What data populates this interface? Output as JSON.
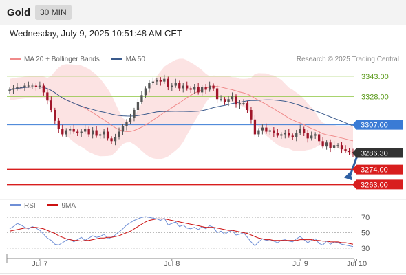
{
  "header": {
    "title": "Gold",
    "timeframe": "30 MIN"
  },
  "timestamp": "Wednesday, July 9, 2025 10:51:48 AM CET",
  "legend_top": [
    {
      "label": "MA 20 + Bollinger Bands",
      "color": "#f08a8a"
    },
    {
      "label": "MA 50",
      "color": "#3a5a8c"
    }
  ],
  "credit": "Research © 2025 Trading Central",
  "legend_bottom": [
    {
      "label": "RSI",
      "color": "#6f8fd6"
    },
    {
      "label": "9MA",
      "color": "#cc1111"
    }
  ],
  "colors": {
    "up": "#555555",
    "down": "#a0162a",
    "arrow": "#2e5fa3"
  },
  "chart_data": [
    {
      "type": "candlestick",
      "title": "",
      "ylim": [
        3252,
        3351
      ],
      "x_ticks": [
        {
          "label": "Jul 7",
          "index": 8
        },
        {
          "label": "Jul 8",
          "index": 43
        },
        {
          "label": "Jul 9",
          "index": 77
        },
        {
          "label": "Jul 10",
          "index": 92
        }
      ],
      "candles_close": [
        3333,
        3334,
        3335,
        3335,
        3336,
        3336,
        3336,
        3335,
        3336,
        3331,
        3325,
        3318,
        3310,
        3304,
        3300,
        3303,
        3304,
        3302,
        3301,
        3302,
        3304,
        3300,
        3303,
        3299,
        3300,
        3302,
        3297,
        3295,
        3298,
        3302,
        3306,
        3309,
        3312,
        3318,
        3324,
        3329,
        3334,
        3338,
        3339,
        3340,
        3339,
        3341,
        3335,
        3336,
        3338,
        3334,
        3336,
        3334,
        3333,
        3335,
        3331,
        3335,
        3333,
        3336,
        3334,
        3326,
        3326,
        3324,
        3326,
        3328,
        3322,
        3323,
        3323,
        3318,
        3311,
        3300,
        3303,
        3305,
        3302,
        3303,
        3301,
        3299,
        3300,
        3301,
        3299,
        3298,
        3301,
        3304,
        3301,
        3297,
        3299,
        3300,
        3295,
        3291,
        3294,
        3290,
        3292,
        3292,
        3289,
        3288,
        3287,
        3286.3
      ],
      "current_price": "3286.30",
      "levels": [
        {
          "value": 3343.0,
          "label": "3343.00",
          "color": "#8cc63f",
          "style": "green"
        },
        {
          "value": 3328.0,
          "label": "3328.00",
          "color": "#8cc63f",
          "style": "green"
        },
        {
          "value": 3307.0,
          "label": "3307.00",
          "color": "#3a7bd5",
          "style": "blue"
        },
        {
          "value": 3274.0,
          "label": "3274.00",
          "color": "#d81e1e",
          "style": "red"
        },
        {
          "value": 3263.0,
          "label": "3263.00",
          "color": "#d81e1e",
          "style": "red"
        }
      ],
      "arrow": {
        "from_value": 3284,
        "to_value": 3266
      }
    },
    {
      "type": "line",
      "title": "",
      "ylim": [
        20,
        80
      ],
      "y_ticks": [
        70,
        50,
        30
      ],
      "series": [
        {
          "name": "RSI",
          "values": [
            55,
            58,
            62,
            60,
            57,
            55,
            58,
            56,
            53,
            48,
            43,
            40,
            35,
            34,
            37,
            40,
            42,
            38,
            41,
            44,
            40,
            43,
            46,
            44,
            45,
            48,
            42,
            44,
            47,
            51,
            55,
            60,
            63,
            66,
            68,
            70,
            71,
            70,
            69,
            68,
            66,
            69,
            60,
            62,
            64,
            58,
            60,
            56,
            55,
            57,
            54,
            58,
            55,
            59,
            57,
            50,
            52,
            48,
            51,
            53,
            47,
            48,
            50,
            44,
            38,
            33,
            38,
            42,
            40,
            41,
            39,
            37,
            40,
            41,
            39,
            38,
            42,
            45,
            41,
            37,
            40,
            42,
            36,
            34,
            39,
            35,
            38,
            37,
            35,
            34,
            33,
            32
          ]
        },
        {
          "name": "9MA",
          "values": [
            52,
            53,
            54,
            55,
            56,
            56,
            57,
            57,
            56,
            55,
            53,
            51,
            49,
            46,
            44,
            42,
            41,
            40,
            40,
            39,
            40,
            40,
            41,
            42,
            43,
            43,
            44,
            44,
            45,
            46,
            48,
            50,
            52,
            55,
            58,
            61,
            64,
            66,
            67,
            68,
            68,
            68,
            67,
            66,
            65,
            64,
            63,
            62,
            61,
            60,
            59,
            58,
            57,
            57,
            57,
            56,
            55,
            54,
            53,
            53,
            52,
            51,
            50,
            49,
            47,
            45,
            43,
            42,
            41,
            41,
            40,
            40,
            40,
            40,
            40,
            40,
            40,
            41,
            41,
            41,
            41,
            40,
            40,
            39,
            39,
            38,
            38,
            38,
            37,
            37,
            36,
            35
          ]
        }
      ]
    }
  ]
}
